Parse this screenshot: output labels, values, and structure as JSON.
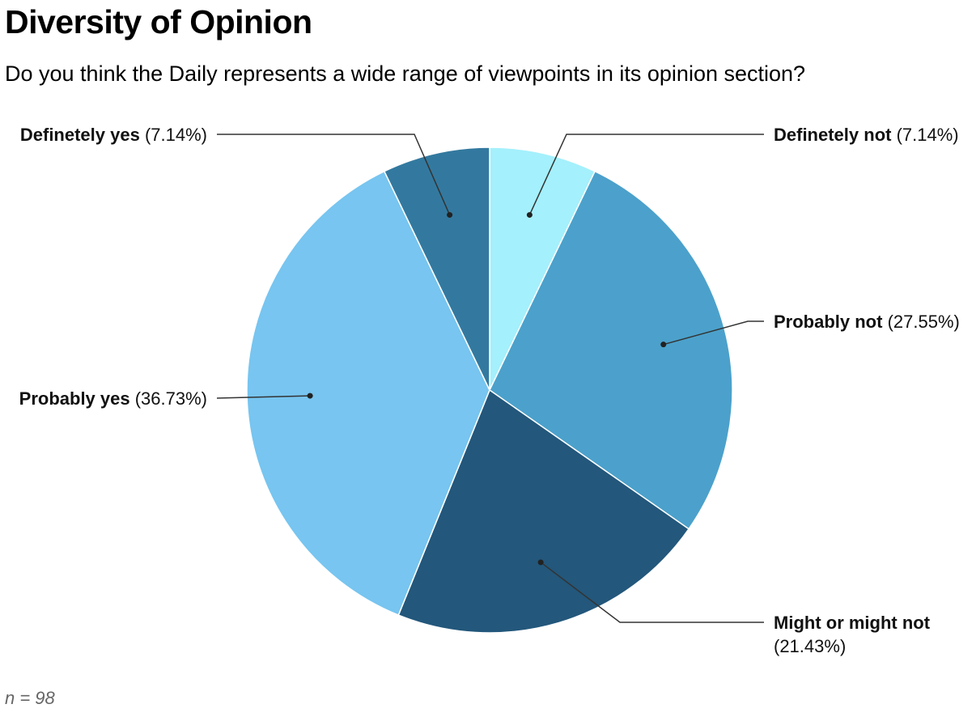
{
  "header": {
    "title": "Diversity of Opinion",
    "subtitle": "Do you think the Daily represents a wide range of viewpoints in its opinion section?"
  },
  "footer": {
    "note": "n = 98"
  },
  "chart_data": {
    "type": "pie",
    "title": "Diversity of Opinion",
    "subtitle": "Do you think the Daily represents a wide range of viewpoints in its opinion section?",
    "start_angle_deg": 0,
    "direction": "clockwise",
    "slices": [
      {
        "key": "definitely-not",
        "label": "Definetely not",
        "value_text": "(7.14%)",
        "percent": 7.14,
        "color": "#a4f0fc"
      },
      {
        "key": "probably-not",
        "label": "Probably not",
        "value_text": "(27.55%)",
        "percent": 27.55,
        "color": "#4ba1cb"
      },
      {
        "key": "might-or-might-not",
        "label": "Might or might not",
        "value_text": "(21.43%)",
        "percent": 21.43,
        "color": "#23577b"
      },
      {
        "key": "probably-yes",
        "label": "Probably yes",
        "value_text": "(36.73%)",
        "percent": 36.73,
        "color": "#77c5f0"
      },
      {
        "key": "definitely-yes",
        "label": "Definetely yes",
        "value_text": "(7.14%)",
        "percent": 7.14,
        "color": "#33799f"
      }
    ],
    "n": 98
  }
}
